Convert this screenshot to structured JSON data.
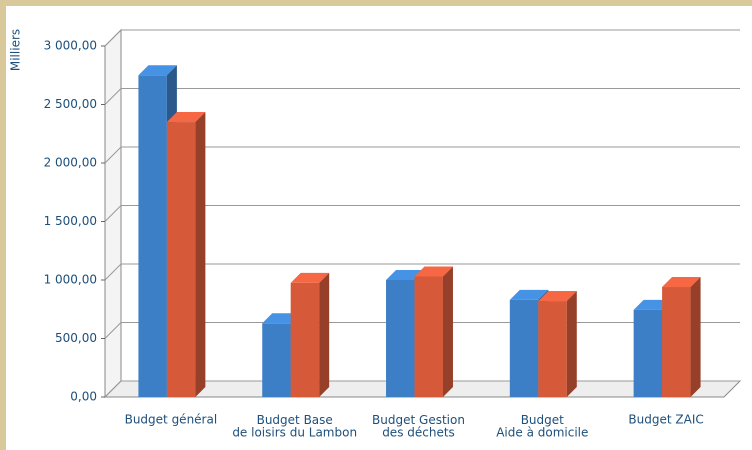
{
  "chart_data": {
    "type": "bar3d",
    "y_label": "Milliers",
    "categories": [
      "Budget général",
      "Budget Base\nde loisirs du Lambon",
      "Budget Gestion\ndes déchets",
      "Budget\nAide à domicile",
      "Budget ZAIC"
    ],
    "series": [
      {
        "color": "#3d7fc6",
        "values": [
          2750,
          630,
          1000,
          830,
          745
        ]
      },
      {
        "color": "#d65a3a",
        "values": [
          2350,
          975,
          1030,
          820,
          940
        ]
      }
    ],
    "ylim": [
      0,
      3000
    ],
    "yticks": [
      {
        "value": 0,
        "label": "0,00"
      },
      {
        "value": 500,
        "label": "500,00"
      },
      {
        "value": 1000,
        "label": "1 000,00"
      },
      {
        "value": 1500,
        "label": "1 500,00"
      },
      {
        "value": 2000,
        "label": "2 000,00"
      },
      {
        "value": 2500,
        "label": "2 500,00"
      },
      {
        "value": 3000,
        "label": "3 000,00"
      }
    ],
    "grid": true
  }
}
